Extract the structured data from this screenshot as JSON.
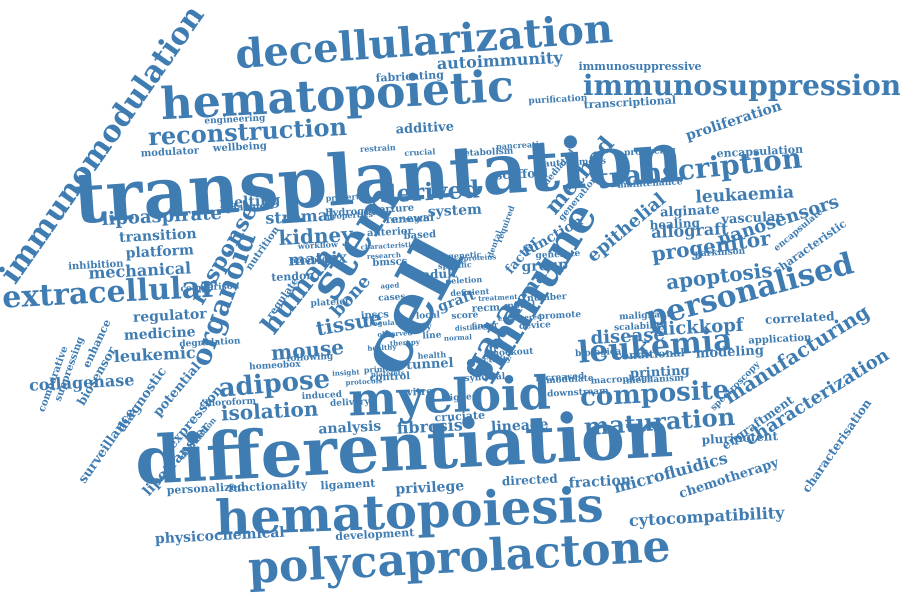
{
  "word_cloud": {
    "color": "#3f7cb2",
    "words": [
      "transplantation",
      "differentiation",
      "hematopoiesis",
      "polycaprolactone",
      "hematopoietic",
      "decellularization",
      "myeloid",
      "cell",
      "immune",
      "stem",
      "immunosuppression",
      "immunomodulation",
      "extracellular",
      "personalised",
      "leukemia",
      "transcription",
      "gata",
      "composite",
      "organoid",
      "derived",
      "reconstruction",
      "maturation",
      "human",
      "response",
      "adipose",
      "isolation",
      "apoptosis",
      "method",
      "renal",
      "lipoaspirate",
      "mouse",
      "kidney",
      "tissue",
      "bone",
      "progenitor",
      "epithelial",
      "nanosensors",
      "leukaemia",
      "disease",
      "dickkopf",
      "manufacturing",
      "characterization",
      "allograft",
      "mechanical",
      "leukemic",
      "collagenase",
      "platform",
      "transition",
      "regulator",
      "medicine",
      "matrix",
      "stromal",
      "analysis",
      "fibrosis",
      "lineage",
      "microfluidics",
      "cytocompatibility",
      "physicochemical",
      "privilege",
      "fraction",
      "directed",
      "potential",
      "expression",
      "lipotransfer",
      "surveillance",
      "diagnostic",
      "biosensor",
      "enhance",
      "autoimmunity",
      "immunosuppressive",
      "additive",
      "proliferation",
      "system",
      "scaffold",
      "function",
      "group",
      "factor",
      "graft",
      "adult",
      "tunnel",
      "melting",
      "alginate",
      "healing",
      "vascular",
      "modeling",
      "printing",
      "conditional",
      "correlated",
      "chemotherapy",
      "characterisation",
      "engraftment",
      "pluripotent",
      "development",
      "functionality",
      "ligament",
      "personalized",
      "fabricating",
      "transcriptional",
      "encapsulation",
      "characteristic",
      "tendon",
      "regulate",
      "nutrition",
      "cruciate",
      "vitro",
      "study",
      "control",
      "renewal",
      "based",
      "application",
      "suppressing",
      "comparative",
      "inhibition",
      "plasmon",
      "hydrogel",
      "modulator",
      "wellbeing",
      "engineering",
      "metabolism",
      "aperture",
      "anterior",
      "higher",
      "increased",
      "producing",
      "purification",
      "maintenance",
      "parkinson",
      "generation",
      "mediated",
      "autonomous",
      "model",
      "number",
      "downstream",
      "modulate",
      "macrophage",
      "mechanism",
      "knockout",
      "synovial",
      "biological",
      "malignant",
      "scalability",
      "spectroscopy",
      "encapsulate",
      "platelet",
      "degradation",
      "comparison",
      "chloroform",
      "induced",
      "delivery",
      "following",
      "homeobox",
      "primed",
      "health",
      "activity",
      "finger",
      "deletion",
      "deficient",
      "specific",
      "strength",
      "bmscs",
      "ipscs",
      "recm",
      "cases",
      "line",
      "local",
      "score",
      "device",
      "promote",
      "generate",
      "genetic",
      "required",
      "dental",
      "crucial",
      "property",
      "approach",
      "workflow",
      "restrain",
      "pancreatic",
      "properties",
      "characteristics",
      "research",
      "platelets",
      "distinct",
      "therapy",
      "observed",
      "regulation",
      "healthy",
      "normal",
      "proteins",
      "treatment",
      "engineered",
      "aged",
      "protocols",
      "insight",
      "modulation"
    ]
  }
}
